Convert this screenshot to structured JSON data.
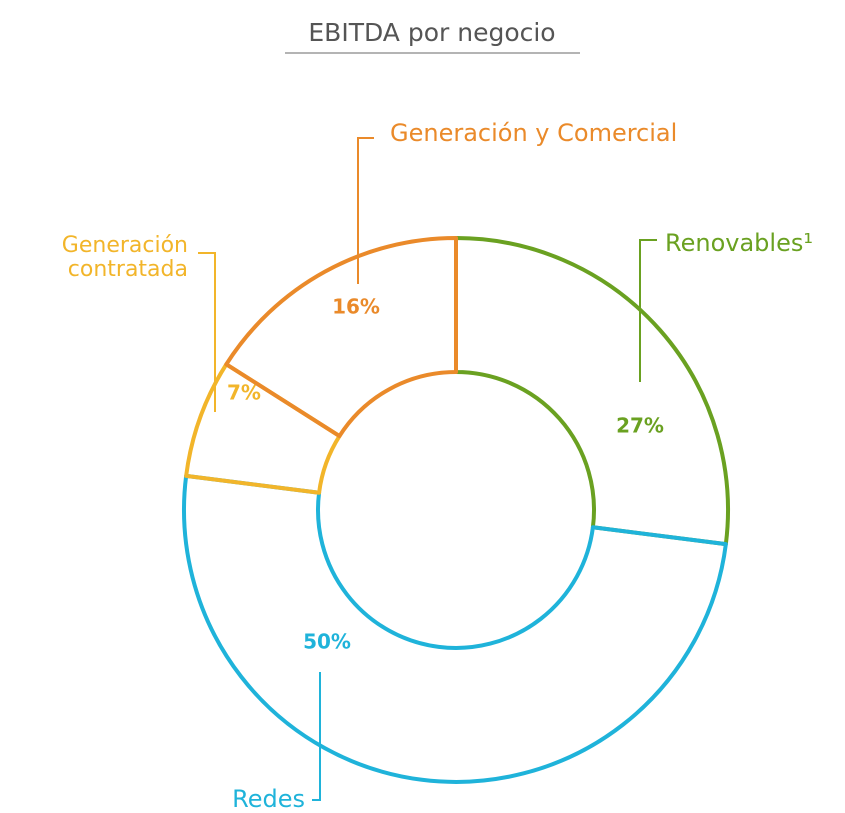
{
  "chart_data": {
    "type": "donut",
    "title": "EBITDA por negocio",
    "categories": [
      "Renovables¹",
      "Redes",
      "Generación contratada",
      "Generación y Comercial"
    ],
    "values": [
      27,
      50,
      7,
      16
    ],
    "value_labels": [
      "27%",
      "50%",
      "7%",
      "16%"
    ],
    "colors": [
      "#6aa121",
      "#1fb3da",
      "#f2b52a",
      "#ea8a2a"
    ]
  }
}
